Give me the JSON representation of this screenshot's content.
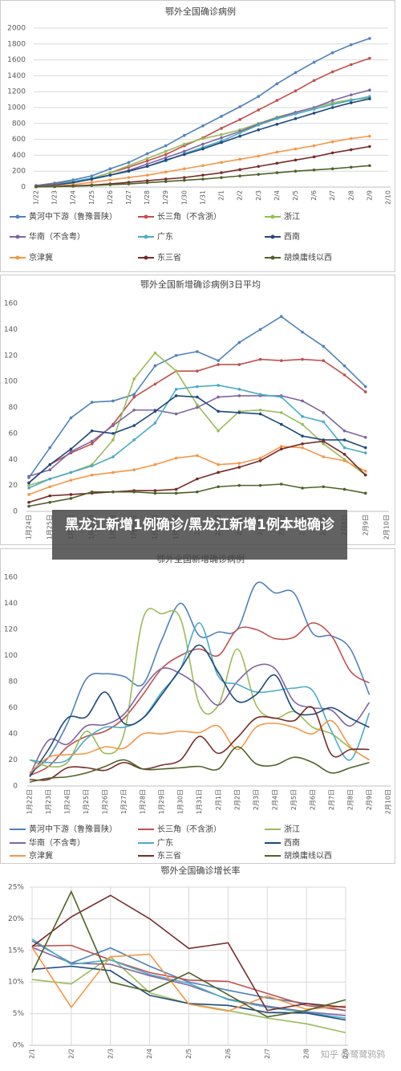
{
  "headline": "黑龙江新增1例确诊/黑龙江新增1例本地确诊",
  "watermark": "知乎 @鹭鹭鸦鸦",
  "chart_data": [
    {
      "type": "line",
      "title": "鄂外全国确诊病例",
      "ylim": [
        0,
        2000
      ],
      "yticks": [
        0,
        200,
        400,
        600,
        800,
        1000,
        1200,
        1400,
        1600,
        1800,
        2000
      ],
      "grid": true,
      "markers": true,
      "smooth": false,
      "legend": true,
      "categories": [
        "1/22",
        "1/23",
        "1/24",
        "1/25",
        "1/26",
        "1/27",
        "1/28",
        "1/29",
        "1/30",
        "1/31",
        "2/1",
        "2/2",
        "2/3",
        "2/4",
        "2/5",
        "2/6",
        "2/7",
        "2/8",
        "2/9",
        "2/10"
      ],
      "series": [
        {
          "name": "黄河中下游（鲁豫晋陕）",
          "color": "#4f81bd",
          "values": [
            20,
            50,
            90,
            140,
            230,
            310,
            420,
            520,
            650,
            770,
            890,
            1010,
            1140,
            1300,
            1440,
            1570,
            1690,
            1790,
            1870,
            null
          ]
        },
        {
          "name": "长三角（不含浙）",
          "color": "#c0504d",
          "values": [
            15,
            40,
            70,
            110,
            180,
            250,
            330,
            410,
            520,
            620,
            740,
            850,
            970,
            1090,
            1210,
            1340,
            1450,
            1540,
            1620,
            null
          ]
        },
        {
          "name": "浙江",
          "color": "#9bbb59",
          "values": [
            10,
            30,
            60,
            110,
            180,
            270,
            360,
            450,
            540,
            610,
            660,
            720,
            800,
            880,
            940,
            1000,
            1060,
            1100,
            1120,
            null
          ]
        },
        {
          "name": "华南（不含粤）",
          "color": "#8064a2",
          "values": [
            10,
            30,
            60,
            100,
            150,
            210,
            290,
            370,
            450,
            540,
            620,
            700,
            790,
            870,
            940,
            1000,
            1090,
            1160,
            1220,
            null
          ]
        },
        {
          "name": "广东",
          "color": "#4bacc6",
          "values": [
            10,
            30,
            70,
            110,
            150,
            200,
            260,
            330,
            420,
            500,
            580,
            680,
            780,
            860,
            920,
            980,
            1040,
            1090,
            1140,
            null
          ]
        },
        {
          "name": "西南",
          "color": "#1f497d",
          "values": [
            10,
            25,
            55,
            100,
            150,
            200,
            260,
            340,
            410,
            480,
            560,
            640,
            720,
            790,
            860,
            930,
            1000,
            1060,
            1110,
            null
          ]
        },
        {
          "name": "京津冀",
          "color": "#f79646",
          "values": [
            5,
            15,
            30,
            60,
            90,
            120,
            150,
            190,
            230,
            270,
            310,
            350,
            390,
            440,
            480,
            520,
            570,
            610,
            640,
            null
          ]
        },
        {
          "name": "东三省",
          "color": "#772c2a",
          "values": [
            3,
            8,
            15,
            25,
            40,
            60,
            80,
            100,
            120,
            150,
            180,
            220,
            260,
            300,
            340,
            380,
            430,
            470,
            510,
            null
          ]
        },
        {
          "name": "胡焕庸线以西",
          "color": "#4f6228",
          "values": [
            2,
            5,
            10,
            20,
            30,
            40,
            55,
            70,
            85,
            100,
            120,
            140,
            160,
            180,
            200,
            215,
            230,
            250,
            270,
            null
          ]
        }
      ]
    },
    {
      "type": "line",
      "title": "鄂外全国新增确诊病例3日平均",
      "ylim": [
        0,
        160
      ],
      "yticks": [
        0,
        20,
        40,
        60,
        80,
        100,
        120,
        140,
        160
      ],
      "grid": false,
      "markers": true,
      "smooth": false,
      "legend": false,
      "categories": [
        "1月24日",
        "1月25日",
        "1月26日",
        "1月27日",
        "1月28日",
        "1月29日",
        "1月30日",
        "1月31日",
        "2月1日",
        "2月2日",
        "2月3日",
        "2月4日",
        "2月5日",
        "2月6日",
        "2月7日",
        "2月8日",
        "2月9日",
        "2月10日"
      ],
      "series": [
        {
          "name": "黄河中下游（鲁豫晋陕）",
          "color": "#4f81bd",
          "values": [
            26,
            49,
            72,
            84,
            85,
            90,
            112,
            120,
            123,
            116,
            130,
            140,
            150,
            138,
            127,
            112,
            96,
            null
          ]
        },
        {
          "name": "长三角（不含浙）",
          "color": "#c0504d",
          "values": [
            22,
            36,
            45,
            52,
            67,
            88,
            98,
            108,
            108,
            113,
            113,
            117,
            116,
            117,
            116,
            105,
            92,
            null
          ]
        },
        {
          "name": "浙江",
          "color": "#9bbb59",
          "values": [
            20,
            25,
            30,
            36,
            55,
            102,
            122,
            108,
            82,
            62,
            77,
            78,
            76,
            67,
            52,
            40,
            28,
            null
          ]
        },
        {
          "name": "华南（不含粤）",
          "color": "#8064a2",
          "values": [
            27,
            32,
            46,
            54,
            66,
            78,
            78,
            75,
            80,
            88,
            89,
            89,
            89,
            85,
            76,
            62,
            57,
            null
          ]
        },
        {
          "name": "广东",
          "color": "#4bacc6",
          "values": [
            18,
            25,
            30,
            35,
            42,
            55,
            68,
            94,
            96,
            97,
            94,
            90,
            88,
            73,
            69,
            49,
            45,
            null
          ]
        },
        {
          "name": "西南",
          "color": "#1f497d",
          "values": [
            22,
            36,
            48,
            62,
            60,
            66,
            77,
            89,
            88,
            77,
            76,
            75,
            67,
            58,
            55,
            55,
            49,
            null
          ]
        },
        {
          "name": "京津冀",
          "color": "#f79646",
          "values": [
            13,
            19,
            24,
            28,
            30,
            32,
            36,
            41,
            43,
            36,
            37,
            41,
            50,
            49,
            42,
            39,
            31,
            null
          ]
        },
        {
          "name": "东三省",
          "color": "#772c2a",
          "values": [
            7,
            12,
            13,
            14,
            15,
            16,
            16,
            17,
            25,
            30,
            34,
            39,
            48,
            52,
            54,
            44,
            28,
            null
          ]
        },
        {
          "name": "胡焕庸线以西",
          "color": "#4f6228",
          "values": [
            4,
            7,
            10,
            15,
            15,
            15,
            14,
            14,
            15,
            19,
            20,
            20,
            21,
            18,
            19,
            17,
            14,
            null
          ]
        }
      ]
    },
    {
      "type": "line",
      "title": "鄂外全国新增确诊病例",
      "ylim": [
        0,
        160
      ],
      "yticks": [
        0,
        20,
        40,
        60,
        80,
        100,
        120,
        140,
        160
      ],
      "grid": false,
      "markers": false,
      "smooth": true,
      "legend": true,
      "categories": [
        "1月22日",
        "1月23日",
        "1月24日",
        "1月25日",
        "1月26日",
        "1月27日",
        "1月28日",
        "1月29日",
        "1月30日",
        "1月31日",
        "2月1日",
        "2月2日",
        "2月3日",
        "2月4日",
        "2月5日",
        "2月6日",
        "2月7日",
        "2月8日",
        "2月9日",
        "2月10日"
      ],
      "series": [
        {
          "name": "黄河中下游（鲁豫晋陕）",
          "color": "#4f81bd",
          "values": [
            10,
            22,
            48,
            82,
            86,
            84,
            78,
            112,
            140,
            115,
            118,
            120,
            155,
            148,
            148,
            117,
            115,
            105,
            70,
            null
          ]
        },
        {
          "name": "长三角（不含浙）",
          "color": "#c0504d",
          "values": [
            8,
            15,
            30,
            38,
            42,
            52,
            70,
            90,
            100,
            105,
            100,
            120,
            120,
            113,
            114,
            125,
            115,
            88,
            79,
            null
          ]
        },
        {
          "name": "浙江",
          "color": "#9bbb59",
          "values": [
            20,
            15,
            18,
            42,
            25,
            40,
            128,
            132,
            128,
            62,
            62,
            105,
            62,
            52,
            57,
            45,
            40,
            29,
            20,
            null
          ]
        },
        {
          "name": "华南（不含粤）",
          "color": "#8064a2",
          "values": [
            8,
            35,
            32,
            46,
            47,
            55,
            75,
            90,
            86,
            76,
            62,
            80,
            92,
            90,
            65,
            60,
            58,
            46,
            64,
            null
          ]
        },
        {
          "name": "广东",
          "color": "#4bacc6",
          "values": [
            20,
            18,
            20,
            36,
            45,
            45,
            52,
            72,
            90,
            125,
            84,
            78,
            72,
            73,
            75,
            73,
            42,
            20,
            56,
            null
          ]
        },
        {
          "name": "西南",
          "color": "#1f497d",
          "values": [
            7,
            28,
            52,
            53,
            72,
            48,
            52,
            70,
            90,
            108,
            87,
            65,
            70,
            85,
            58,
            55,
            60,
            52,
            45,
            null
          ]
        },
        {
          "name": "京津冀",
          "color": "#f79646",
          "values": [
            10,
            22,
            24,
            25,
            30,
            29,
            40,
            40,
            42,
            41,
            46,
            28,
            45,
            48,
            45,
            40,
            50,
            30,
            20,
            null
          ]
        },
        {
          "name": "东三省",
          "color": "#772c2a",
          "values": [
            5,
            5,
            14,
            14,
            12,
            18,
            13,
            16,
            20,
            38,
            25,
            37,
            52,
            52,
            50,
            60,
            24,
            28,
            28,
            null
          ]
        },
        {
          "name": "胡焕庸线以西",
          "color": "#4f6228",
          "values": [
            3,
            6,
            7,
            10,
            15,
            20,
            13,
            13,
            14,
            15,
            13,
            30,
            17,
            16,
            22,
            18,
            10,
            14,
            18,
            null
          ]
        }
      ]
    },
    {
      "type": "line",
      "title": "鄂外全国确诊增长率",
      "ylim": [
        0,
        25
      ],
      "yticks": [
        {
          "value": 0,
          "label": "0%"
        },
        {
          "value": 5,
          "label": "5%"
        },
        {
          "value": 10,
          "label": "10%"
        },
        {
          "value": 15,
          "label": "15%"
        },
        {
          "value": 20,
          "label": "20%"
        },
        {
          "value": 25,
          "label": "25%"
        }
      ],
      "grid": true,
      "xgrid": true,
      "markers": false,
      "smooth": false,
      "legend": false,
      "categories": [
        "2/1",
        "2/2",
        "2/3",
        "2/4",
        "2/5",
        "2/6",
        "2/7",
        "2/8",
        "2/9"
      ],
      "series": [
        {
          "name": "黄河中下游（鲁豫晋陕）",
          "color": "#4f81bd",
          "values": [
            16.5,
            13,
            15.4,
            12.5,
            10,
            8.7,
            7.5,
            6.6,
            5.5
          ]
        },
        {
          "name": "长三角（不含浙）",
          "color": "#c0504d",
          "values": [
            15.7,
            15.8,
            13.5,
            11.5,
            10.3,
            10.1,
            8.2,
            6.3,
            5.5
          ]
        },
        {
          "name": "浙江",
          "color": "#9bbb59",
          "values": [
            10.4,
            9.7,
            14,
            8.3,
            6.6,
            5.5,
            4.3,
            3.4,
            2
          ]
        },
        {
          "name": "华南（不含粤）",
          "color": "#8064a2",
          "values": [
            15.5,
            13,
            12.8,
            11,
            9.5,
            7.3,
            6.2,
            5.3,
            4.7
          ]
        },
        {
          "name": "广东",
          "color": "#4bacc6",
          "values": [
            16.8,
            12.8,
            13.5,
            11.2,
            9.8,
            7.2,
            6,
            5.2,
            4.3
          ]
        },
        {
          "name": "西南",
          "color": "#1f497d",
          "values": [
            12,
            12.5,
            11.8,
            7.9,
            6.6,
            6.3,
            5.2,
            5.1,
            4
          ]
        },
        {
          "name": "京津冀",
          "color": "#f79646",
          "values": [
            15.5,
            6,
            14,
            14.4,
            6.5,
            5.4,
            7.8,
            5.7,
            6.2
          ]
        },
        {
          "name": "东三省",
          "color": "#772c2a",
          "values": [
            15.6,
            20.3,
            23.7,
            20,
            15.3,
            16.2,
            5.5,
            6.6,
            6
          ]
        },
        {
          "name": "胡焕庸线以西",
          "color": "#4f6228",
          "values": [
            11.5,
            24.3,
            10,
            8.5,
            11.5,
            8,
            4.5,
            5.5,
            7.2
          ]
        }
      ]
    }
  ]
}
